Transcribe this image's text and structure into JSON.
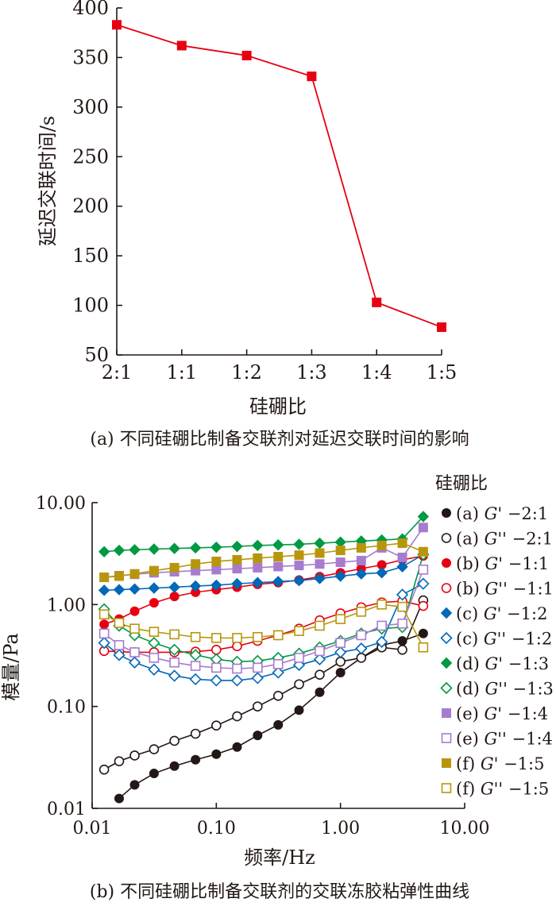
{
  "chart_data": [
    {
      "type": "line",
      "caption": "(a) 不同硅硼比制备交联剂对延迟交联时间的影响",
      "xlabel": "硅硼比",
      "ylabel": "延迟交联时间/s",
      "categories": [
        "2:1",
        "1:1",
        "1:2",
        "1:3",
        "1:4",
        "1:5"
      ],
      "ylim": [
        50,
        400
      ],
      "yticks": [
        "50",
        "100",
        "150",
        "200",
        "250",
        "300",
        "350",
        "400"
      ],
      "series": [
        {
          "color": "#e60012",
          "marker": "square",
          "values": [
            383,
            362,
            352,
            331,
            103,
            78
          ]
        }
      ],
      "grid": false
    },
    {
      "type": "line",
      "caption": "(b) 不同硅硼比制备交联剂的交联冻胶粘弹性曲线",
      "xlabel": "频率/Hz",
      "ylabel": "模量/Pa",
      "xscale": "log",
      "yscale": "log",
      "xlim": [
        0.01,
        10
      ],
      "ylim": [
        0.01,
        10
      ],
      "xticks": [
        "0.01",
        "0.10",
        "1.00",
        "10.00"
      ],
      "yticks": [
        "0.01",
        "0.10",
        "1.00",
        "10.00"
      ],
      "legend_title": "硅硼比",
      "legend_position": "right",
      "grid": false,
      "x": [
        0.0125,
        0.0165,
        0.022,
        0.0315,
        0.046,
        0.068,
        0.1,
        0.147,
        0.215,
        0.315,
        0.464,
        0.68,
        1.0,
        1.47,
        2.15,
        3.15,
        4.64
      ],
      "series": [
        {
          "name": "(a) G' −2:1",
          "label": "(a) ",
          "g": "G",
          "mod": "' −2:1",
          "color": "#231815",
          "marker": "circle",
          "filled": true,
          "values": [
            null,
            0.0125,
            0.017,
            0.022,
            0.026,
            0.03,
            0.034,
            0.04,
            0.052,
            0.066,
            0.092,
            0.138,
            0.215,
            0.3,
            0.4,
            0.44,
            0.52
          ]
        },
        {
          "name": "(a) G'' −2:1",
          "label": "(a) ",
          "g": "G",
          "mod": "'' −2:1",
          "color": "#231815",
          "marker": "circle",
          "filled": false,
          "values": [
            0.024,
            0.029,
            0.033,
            0.038,
            0.046,
            0.054,
            0.065,
            0.08,
            0.1,
            0.127,
            0.165,
            0.205,
            0.275,
            0.3,
            0.38,
            0.36,
            1.1
          ]
        },
        {
          "name": "(b) G' −1:1",
          "label": "(b) ",
          "g": "G",
          "mod": "' −1:1",
          "color": "#e60012",
          "marker": "circle",
          "filled": true,
          "values": [
            0.64,
            0.72,
            0.86,
            1.04,
            1.2,
            1.32,
            1.4,
            1.48,
            1.58,
            1.64,
            1.74,
            1.88,
            2.05,
            2.25,
            2.45,
            2.75,
            3.0
          ]
        },
        {
          "name": "(b) G'' −1:1",
          "label": "(b) ",
          "g": "G",
          "mod": "'' −1:1",
          "color": "#e60012",
          "marker": "circle",
          "filled": false,
          "values": [
            0.35,
            0.345,
            0.34,
            0.34,
            0.34,
            0.345,
            0.36,
            0.39,
            0.44,
            0.5,
            0.58,
            0.7,
            0.82,
            0.94,
            1.05,
            1.08,
            0.97
          ]
        },
        {
          "name": "(c) G' −1:2",
          "label": "(c) ",
          "g": "G",
          "mod": "' −1:2",
          "color": "#0068b7",
          "marker": "diamond",
          "filled": true,
          "values": [
            1.38,
            1.4,
            1.42,
            1.45,
            1.48,
            1.52,
            1.55,
            1.6,
            1.64,
            1.68,
            1.72,
            1.8,
            1.9,
            2.0,
            2.05,
            2.35,
            3.1
          ]
        },
        {
          "name": "(c) G'' −1:2",
          "label": "(c) ",
          "g": "G",
          "mod": "'' −1:2",
          "color": "#0068b7",
          "marker": "diamond",
          "filled": false,
          "values": [
            0.42,
            0.32,
            0.27,
            0.23,
            0.2,
            0.185,
            0.18,
            0.18,
            0.19,
            0.215,
            0.255,
            0.29,
            0.34,
            0.37,
            0.43,
            1.25,
            1.6
          ]
        },
        {
          "name": "(d) G' −1:3",
          "label": "(d) ",
          "g": "G",
          "mod": "' −1:3",
          "color": "#009944",
          "marker": "diamond",
          "filled": true,
          "values": [
            3.3,
            3.4,
            3.45,
            3.5,
            3.55,
            3.6,
            3.65,
            3.72,
            3.8,
            3.85,
            3.9,
            4.0,
            4.1,
            4.2,
            4.3,
            4.4,
            7.3
          ]
        },
        {
          "name": "(d) G'' −1:3",
          "label": "(d) ",
          "g": "G",
          "mod": "'' −1:3",
          "color": "#009944",
          "marker": "diamond",
          "filled": false,
          "values": [
            0.9,
            0.62,
            0.5,
            0.42,
            0.36,
            0.32,
            0.29,
            0.275,
            0.28,
            0.3,
            0.33,
            0.38,
            0.44,
            0.52,
            0.58,
            0.6,
            3.1
          ]
        },
        {
          "name": "(e) G' −1:4",
          "label": "(e) ",
          "g": "G",
          "mod": "' −1:4",
          "color": "#a67ccf",
          "marker": "square",
          "filled": true,
          "values": [
            1.85,
            1.92,
            1.98,
            2.05,
            2.1,
            2.15,
            2.2,
            2.25,
            2.3,
            2.36,
            2.42,
            2.5,
            2.6,
            2.7,
            3.6,
            2.9,
            5.7
          ]
        },
        {
          "name": "(e) G'' −1:4",
          "label": "(e) ",
          "g": "G",
          "mod": "'' −1:4",
          "color": "#a67ccf",
          "marker": "square",
          "filled": false,
          "values": [
            0.52,
            0.4,
            0.34,
            0.3,
            0.27,
            0.25,
            0.24,
            0.235,
            0.24,
            0.26,
            0.3,
            0.35,
            0.42,
            0.5,
            0.62,
            0.65,
            2.2
          ]
        },
        {
          "name": "(f) G' −1:5",
          "label": "(f) ",
          "g": "G",
          "mod": "' −1:5",
          "color": "#b8960c",
          "marker": "square",
          "filled": true,
          "values": [
            1.85,
            1.9,
            2.0,
            2.15,
            2.3,
            2.5,
            2.65,
            2.75,
            2.85,
            2.95,
            3.05,
            3.2,
            3.4,
            3.6,
            3.8,
            4.0,
            3.3
          ]
        },
        {
          "name": "(f) G'' −1:5",
          "label": "(f) ",
          "g": "G",
          "mod": "'' −1:5",
          "color": "#b8960c",
          "marker": "square",
          "filled": false,
          "values": [
            0.8,
            0.66,
            0.58,
            0.54,
            0.51,
            0.48,
            0.47,
            0.47,
            0.48,
            0.5,
            0.55,
            0.62,
            0.72,
            0.85,
            1.0,
            0.95,
            0.38
          ]
        }
      ]
    }
  ]
}
